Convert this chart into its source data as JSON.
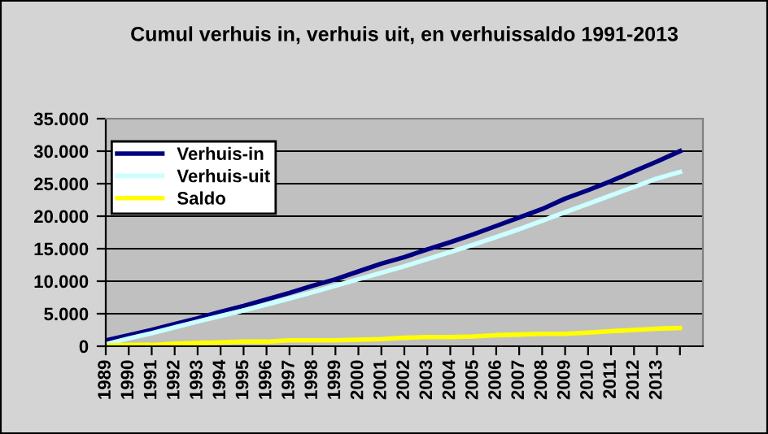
{
  "chart_data": {
    "type": "line",
    "title": "Cumul verhuis in, verhuis uit, en verhuissaldo 1991-2013",
    "categories": [
      "1989",
      "1990",
      "1991",
      "1992",
      "1993",
      "1994",
      "1995",
      "1996",
      "1997",
      "1998",
      "1999",
      "2000",
      "2001",
      "2002",
      "2003",
      "2004",
      "2005",
      "2006",
      "2007",
      "2008",
      "2009",
      "2010",
      "2011",
      "2012",
      "2013",
      null
    ],
    "series": [
      {
        "name": "Verhuis-in",
        "color": "#000080",
        "values": [
          900,
          1700,
          2500,
          3400,
          4300,
          5300,
          6200,
          7200,
          8200,
          9300,
          10300,
          11500,
          12700,
          13700,
          14900,
          16000,
          17200,
          18500,
          19800,
          21100,
          22700,
          24000,
          25400,
          26900,
          28400,
          30000
        ]
      },
      {
        "name": "Verhuis-uit",
        "color": "#ccffff",
        "values": [
          300,
          1200,
          2000,
          2900,
          3800,
          4650,
          5500,
          6400,
          7350,
          8300,
          9300,
          10300,
          11300,
          12300,
          13400,
          14500,
          15600,
          16800,
          18000,
          19300,
          20600,
          21900,
          23200,
          24500,
          25800,
          26800
        ]
      },
      {
        "name": "Saldo",
        "color": "#ffff00",
        "values": [
          100,
          200,
          200,
          400,
          500,
          600,
          700,
          700,
          900,
          900,
          900,
          1000,
          1100,
          1300,
          1400,
          1400,
          1500,
          1700,
          1800,
          1900,
          1900,
          2100,
          2300,
          2500,
          2700,
          2800
        ]
      }
    ],
    "ylim": [
      0,
      35000
    ],
    "yticks": [
      {
        "value": 0,
        "label": "0"
      },
      {
        "value": 5000,
        "label": "5.000"
      },
      {
        "value": 10000,
        "label": "10.000"
      },
      {
        "value": 15000,
        "label": "15.000"
      },
      {
        "value": 20000,
        "label": "20.000"
      },
      {
        "value": 25000,
        "label": "25.000"
      },
      {
        "value": 30000,
        "label": "30.000"
      },
      {
        "value": 35000,
        "label": "35.000"
      }
    ],
    "grid": "y",
    "legend": "top left",
    "marker": "none",
    "line_style": "solid"
  }
}
